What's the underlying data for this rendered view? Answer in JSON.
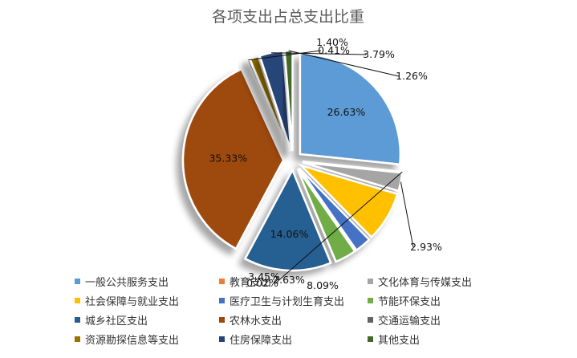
{
  "chart_data": {
    "type": "pie",
    "title": "各项支出占总支出比重",
    "legend_position": "bottom",
    "categories": [
      "一般公共服务支出",
      "教育支出",
      "文化体育与传媒支出",
      "社会保障与就业支出",
      "医疗卫生与计划生育支出",
      "节能环保支出",
      "城乡社区支出",
      "农林水支出",
      "交通运输支出",
      "资源勘探信息等支出",
      "住房保障支出",
      "其他支出"
    ],
    "values": [
      26.63,
      0.02,
      2.93,
      8.09,
      2.63,
      3.45,
      14.06,
      35.33,
      0.41,
      1.4,
      3.79,
      1.26
    ],
    "data_labels": [
      "26.63%",
      "0.02%",
      "2.93%",
      "8.09%",
      "2.63%",
      "3.45%",
      "14.06%",
      "35.33%",
      "0.41%",
      "1.40%",
      "3.79%",
      "1.26%"
    ],
    "colors": [
      "#5B9BD5",
      "#ED7D31",
      "#A5A5A5",
      "#FFC000",
      "#4472C4",
      "#70AD47",
      "#255E91",
      "#9E480E",
      "#636363",
      "#997300",
      "#264478",
      "#43682B"
    ]
  }
}
